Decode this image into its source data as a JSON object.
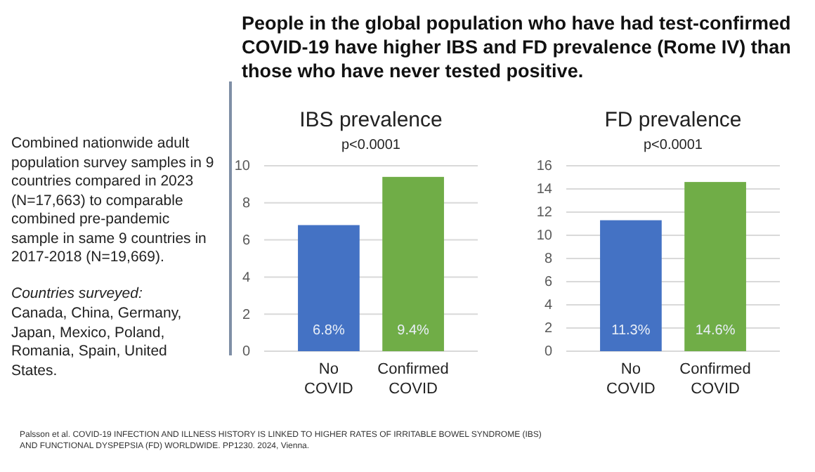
{
  "chart_data": [
    {
      "type": "other",
      "title": "People in the global population who have had test-confirmed COVID-19 have higher IBS and FD prevalence (Rome IV) than those who have never tested positive.",
      "annotations": [
        "Combined nationwide adult population survey samples in 9 countries compared in 2023 (N=17,663) to comparable combined pre-pandemic sample in same 9 countries in 2017-2018 (N=19,669).",
        "Countries surveyed:",
        "Canada, China, Germany, Japan, Mexico, Poland, Romania, Spain, United States.",
        "Palsson et al. COVID-19 INFECTION AND ILLNESS HISTORY IS LINKED TO HIGHER RATES OF IRRITABLE BOWEL SYNDROME (IBS) AND FUNCTIONAL DYSPEPSIA (FD) WORLDWIDE. PP1230. 2024, Vienna."
      ]
    },
    {
      "type": "bar",
      "title": "IBS prevalence",
      "subtitle": "p<0.0001",
      "categories": [
        "No COVID",
        "Confirmed COVID"
      ],
      "values": [
        6.8,
        9.4
      ],
      "colors": [
        "#4472c4",
        "#70ad47"
      ],
      "value_labels": [
        "6.8%",
        "9.4%"
      ],
      "ylim": [
        0,
        10
      ],
      "yticks": [
        0,
        2,
        4,
        6,
        8,
        10
      ],
      "grid": "y"
    },
    {
      "type": "bar",
      "title": "FD prevalence",
      "subtitle": "p<0.0001",
      "categories": [
        "No COVID",
        "Confirmed COVID"
      ],
      "values": [
        11.3,
        14.6
      ],
      "colors": [
        "#4472c4",
        "#70ad47"
      ],
      "value_labels": [
        "11.3%",
        "14.6%"
      ],
      "ylim": [
        0,
        16
      ],
      "yticks": [
        0,
        2,
        4,
        6,
        8,
        10,
        12,
        14,
        16
      ],
      "grid": "y"
    }
  ]
}
